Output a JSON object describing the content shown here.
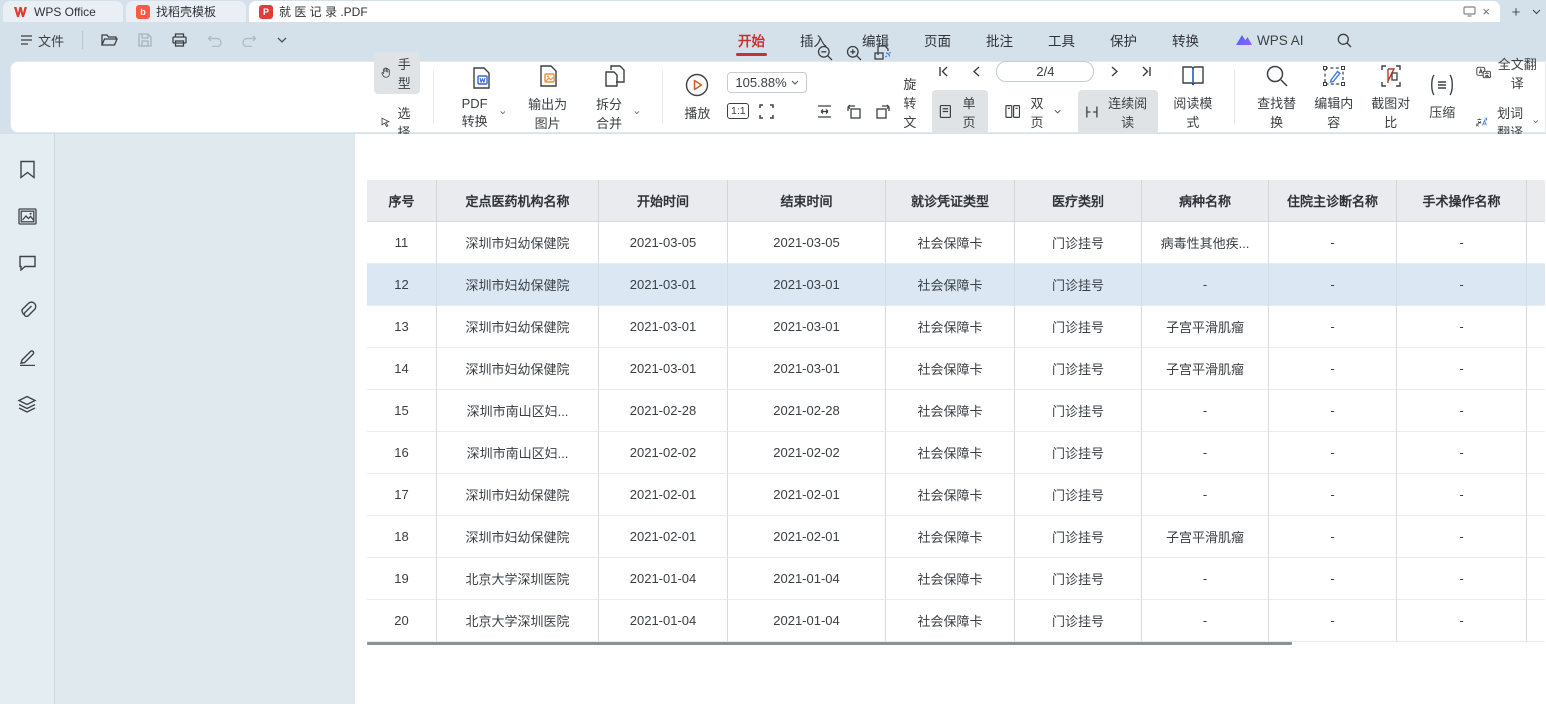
{
  "colors": {
    "accent_red": "#c5342c",
    "tab_pdf_icon": "#e23c39",
    "docer_icon": "#ff5847",
    "row_highlight": "#dbe7f3",
    "header_bg": "#e9ebee",
    "active_btn_bg": "#e0e3e5"
  },
  "tabbar": {
    "tabs": [
      {
        "label": "WPS Office"
      },
      {
        "label": "找稻壳模板"
      },
      {
        "label": "就 医 记 录 .PDF"
      }
    ]
  },
  "menubar": {
    "file_label": "文件",
    "ribbon_tabs": {
      "home": "开始",
      "insert": "插入",
      "edit": "编辑",
      "page": "页面",
      "comment": "批注",
      "tools": "工具",
      "protect": "保护",
      "convert": "转换"
    },
    "wps_ai_label": "WPS AI"
  },
  "toolbar": {
    "hand_label": "手型",
    "select_label": "选择",
    "pdf_convert_label": "PDF转换",
    "export_image_label": "输出为图片",
    "split_merge_label": "拆分合并",
    "play_label": "播放",
    "zoom_value": "105.88%",
    "one_to_one_label": "1:1",
    "page_indicator": "2/4",
    "rotate_doc_label": "旋转文档",
    "single_page_label": "单页",
    "double_page_label": "双页",
    "continuous_label": "连续阅读",
    "read_mode_label": "阅读模式",
    "find_replace_label": "查找替换",
    "edit_content_label": "编辑内容",
    "screenshot_compare_label": "截图对比",
    "compress_label": "压缩",
    "full_translate_label": "全文翻译",
    "word_translate_label": "划词翻译"
  },
  "table": {
    "headers": [
      "序号",
      "定点医药机构名称",
      "开始时间",
      "结束时间",
      "就诊凭证类型",
      "医疗类别",
      "病种名称",
      "住院主诊断名称",
      "手术操作名称"
    ],
    "rows": [
      {
        "highlighted": false,
        "cells": [
          "11",
          "深圳市妇幼保健院",
          "2021-03-05",
          "2021-03-05",
          "社会保障卡",
          "门诊挂号",
          "病毒性其他疾...",
          "-",
          "-"
        ]
      },
      {
        "highlighted": true,
        "cells": [
          "12",
          "深圳市妇幼保健院",
          "2021-03-01",
          "2021-03-01",
          "社会保障卡",
          "门诊挂号",
          "-",
          "-",
          "-"
        ]
      },
      {
        "highlighted": false,
        "cells": [
          "13",
          "深圳市妇幼保健院",
          "2021-03-01",
          "2021-03-01",
          "社会保障卡",
          "门诊挂号",
          "子宫平滑肌瘤",
          "-",
          "-"
        ]
      },
      {
        "highlighted": false,
        "cells": [
          "14",
          "深圳市妇幼保健院",
          "2021-03-01",
          "2021-03-01",
          "社会保障卡",
          "门诊挂号",
          "子宫平滑肌瘤",
          "-",
          "-"
        ]
      },
      {
        "highlighted": false,
        "cells": [
          "15",
          "深圳市南山区妇...",
          "2021-02-28",
          "2021-02-28",
          "社会保障卡",
          "门诊挂号",
          "-",
          "-",
          "-"
        ]
      },
      {
        "highlighted": false,
        "cells": [
          "16",
          "深圳市南山区妇...",
          "2021-02-02",
          "2021-02-02",
          "社会保障卡",
          "门诊挂号",
          "-",
          "-",
          "-"
        ]
      },
      {
        "highlighted": false,
        "cells": [
          "17",
          "深圳市妇幼保健院",
          "2021-02-01",
          "2021-02-01",
          "社会保障卡",
          "门诊挂号",
          "-",
          "-",
          "-"
        ]
      },
      {
        "highlighted": false,
        "cells": [
          "18",
          "深圳市妇幼保健院",
          "2021-02-01",
          "2021-02-01",
          "社会保障卡",
          "门诊挂号",
          "子宫平滑肌瘤",
          "-",
          "-"
        ]
      },
      {
        "highlighted": false,
        "cells": [
          "19",
          "北京大学深圳医院",
          "2021-01-04",
          "2021-01-04",
          "社会保障卡",
          "门诊挂号",
          "-",
          "-",
          "-"
        ]
      },
      {
        "highlighted": false,
        "cells": [
          "20",
          "北京大学深圳医院",
          "2021-01-04",
          "2021-01-04",
          "社会保障卡",
          "门诊挂号",
          "-",
          "-",
          "-"
        ]
      }
    ]
  }
}
